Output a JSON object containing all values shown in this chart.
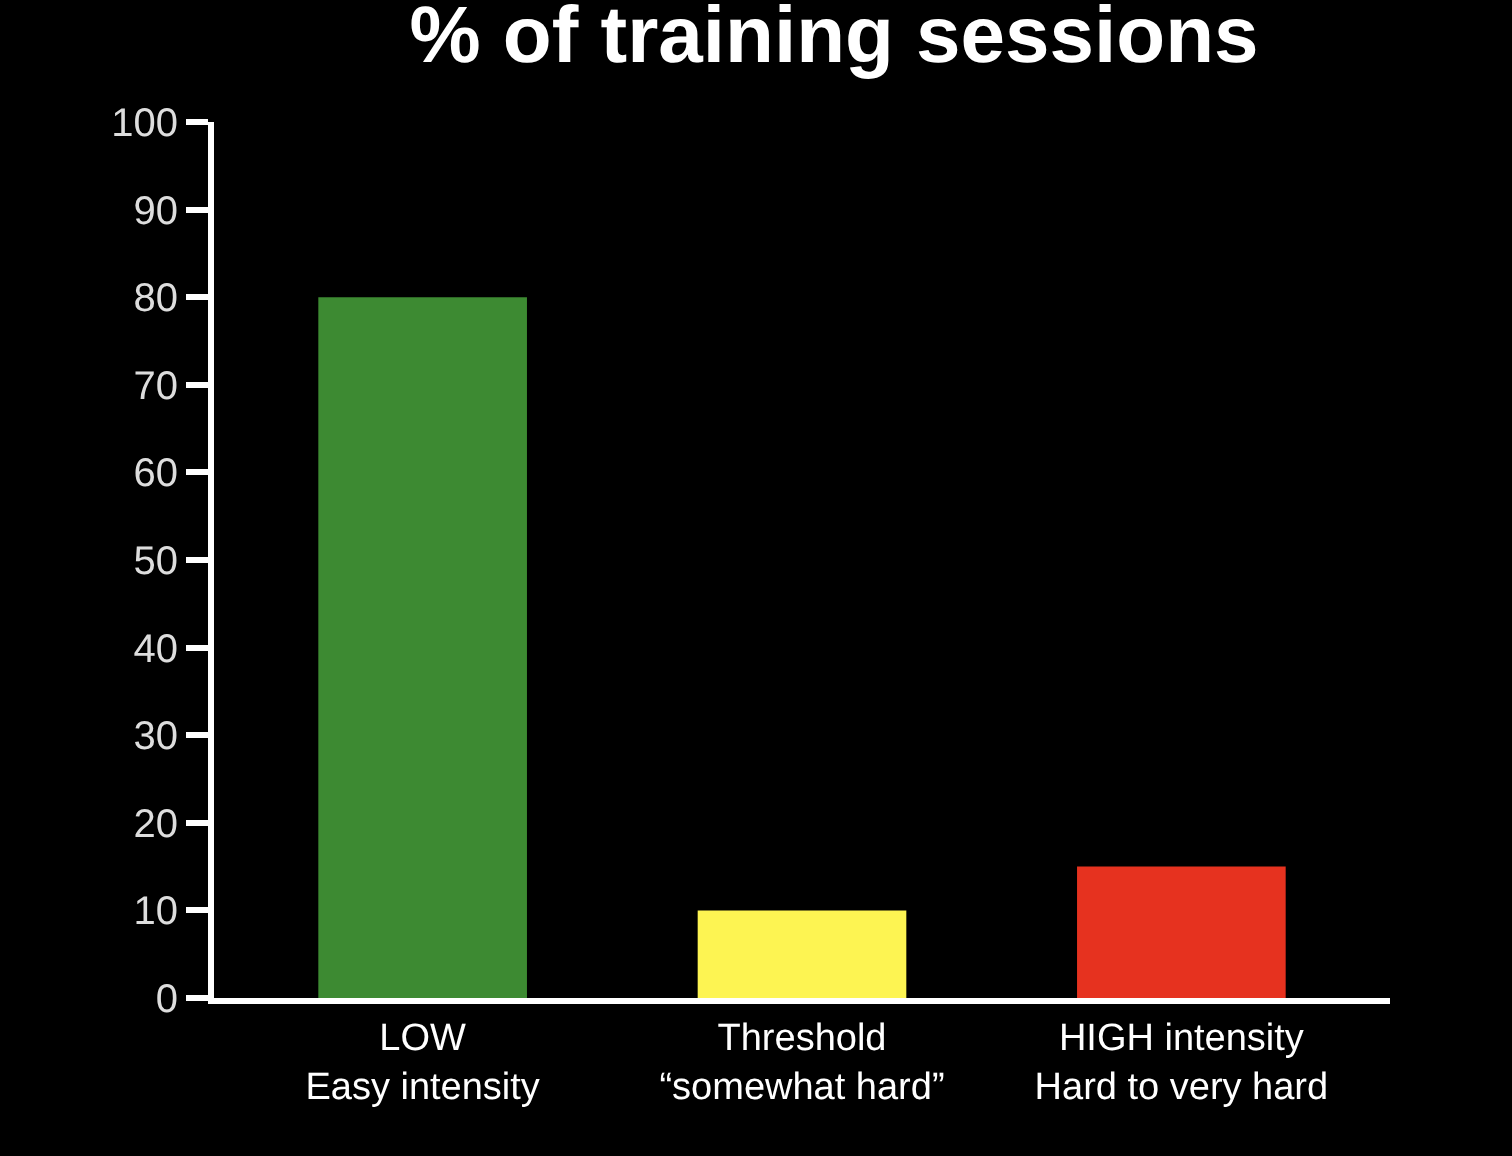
{
  "chart_data": {
    "type": "bar",
    "title": "% of training sessions",
    "categories": [
      "LOW\nEasy intensity",
      "Threshold\n“somewhat hard”",
      "HIGH intensity\nHard to very hard"
    ],
    "values": [
      80,
      10,
      15
    ],
    "colors": [
      "#3d8a32",
      "#fdf452",
      "#e6321f"
    ],
    "ylim": [
      0,
      100
    ],
    "yticks": [
      0,
      10,
      20,
      30,
      40,
      50,
      60,
      70,
      80,
      90,
      100
    ],
    "grid": false
  }
}
